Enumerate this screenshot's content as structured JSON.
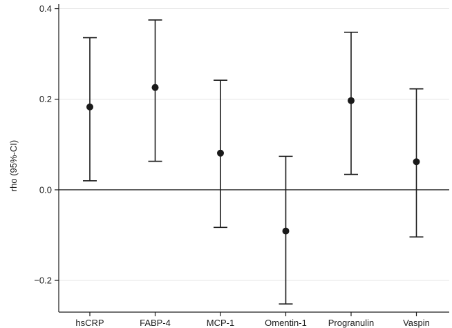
{
  "chart_data": {
    "type": "scatter",
    "subtype": "error-bar point estimates",
    "title": "",
    "xlabel": "",
    "ylabel": "rho (95%-CI)",
    "categories": [
      "hsCRP",
      "FABP-4",
      "MCP-1",
      "Omentin-1",
      "Progranulin",
      "Vaspin"
    ],
    "series": [
      {
        "estimate": [
          0.183,
          0.226,
          0.081,
          -0.091,
          0.197,
          0.062
        ],
        "lower": [
          0.02,
          0.063,
          -0.083,
          -0.252,
          0.034,
          -0.104
        ],
        "upper": [
          0.336,
          0.375,
          0.242,
          0.074,
          0.348,
          0.223
        ]
      }
    ],
    "ylim": [
      -0.27,
      0.41
    ],
    "yticks": [
      -0.2,
      0.0,
      0.2,
      0.4
    ],
    "ytick_labels": [
      "−0.2",
      "0.0",
      "0.2",
      "0.4"
    ],
    "reference_line": 0.0,
    "grid": "horizontal",
    "legend": "none",
    "colors": {
      "point": "#1a1a1a",
      "errorbar": "#1a1a1a",
      "axis": "#1a1a1a",
      "grid": "#e6e6e6",
      "reference": "#1a1a1a",
      "background": "#ffffff"
    }
  }
}
